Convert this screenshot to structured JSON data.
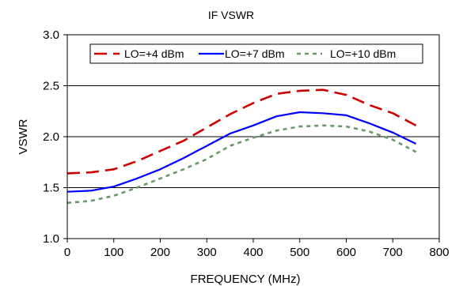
{
  "chart_data": {
    "type": "line",
    "title": "IF VSWR",
    "xlabel": "FREQUENCY (MHz)",
    "ylabel": "VSWR",
    "xlim": [
      0,
      800
    ],
    "ylim": [
      1.0,
      3.0
    ],
    "x_ticks": [
      0,
      100,
      200,
      300,
      400,
      500,
      600,
      700,
      800
    ],
    "y_ticks": [
      1.0,
      1.5,
      2.0,
      2.5,
      3.0
    ],
    "x_tick_labels": [
      "0",
      "100",
      "200",
      "300",
      "400",
      "500",
      "600",
      "700",
      "800"
    ],
    "y_tick_labels": [
      "1.0",
      "1.5",
      "2.0",
      "2.5",
      "3.0"
    ],
    "grid": "horizontal",
    "legend_position": "top",
    "series": [
      {
        "name": "LO=+4 dBm",
        "color": "#cc0000",
        "dash": "long-dash",
        "x": [
          0,
          50,
          100,
          150,
          200,
          250,
          300,
          350,
          400,
          450,
          500,
          550,
          600,
          650,
          700,
          750
        ],
        "values": [
          1.64,
          1.65,
          1.68,
          1.76,
          1.86,
          1.96,
          2.09,
          2.22,
          2.33,
          2.42,
          2.45,
          2.46,
          2.41,
          2.31,
          2.23,
          2.11
        ]
      },
      {
        "name": "LO=+7 dBm",
        "color": "#0000ff",
        "dash": "solid",
        "x": [
          0,
          50,
          100,
          150,
          200,
          250,
          300,
          350,
          400,
          450,
          500,
          550,
          600,
          650,
          700,
          750
        ],
        "values": [
          1.46,
          1.47,
          1.51,
          1.59,
          1.68,
          1.79,
          1.91,
          2.03,
          2.11,
          2.2,
          2.24,
          2.23,
          2.21,
          2.13,
          2.04,
          1.93
        ]
      },
      {
        "name": "LO=+10 dBm",
        "color": "#669966",
        "dash": "dotted",
        "x": [
          0,
          50,
          100,
          150,
          200,
          250,
          300,
          350,
          400,
          450,
          500,
          550,
          600,
          650,
          700,
          750
        ],
        "values": [
          1.35,
          1.37,
          1.42,
          1.5,
          1.59,
          1.68,
          1.78,
          1.91,
          1.99,
          2.06,
          2.1,
          2.11,
          2.1,
          2.05,
          1.97,
          1.85
        ]
      }
    ]
  }
}
